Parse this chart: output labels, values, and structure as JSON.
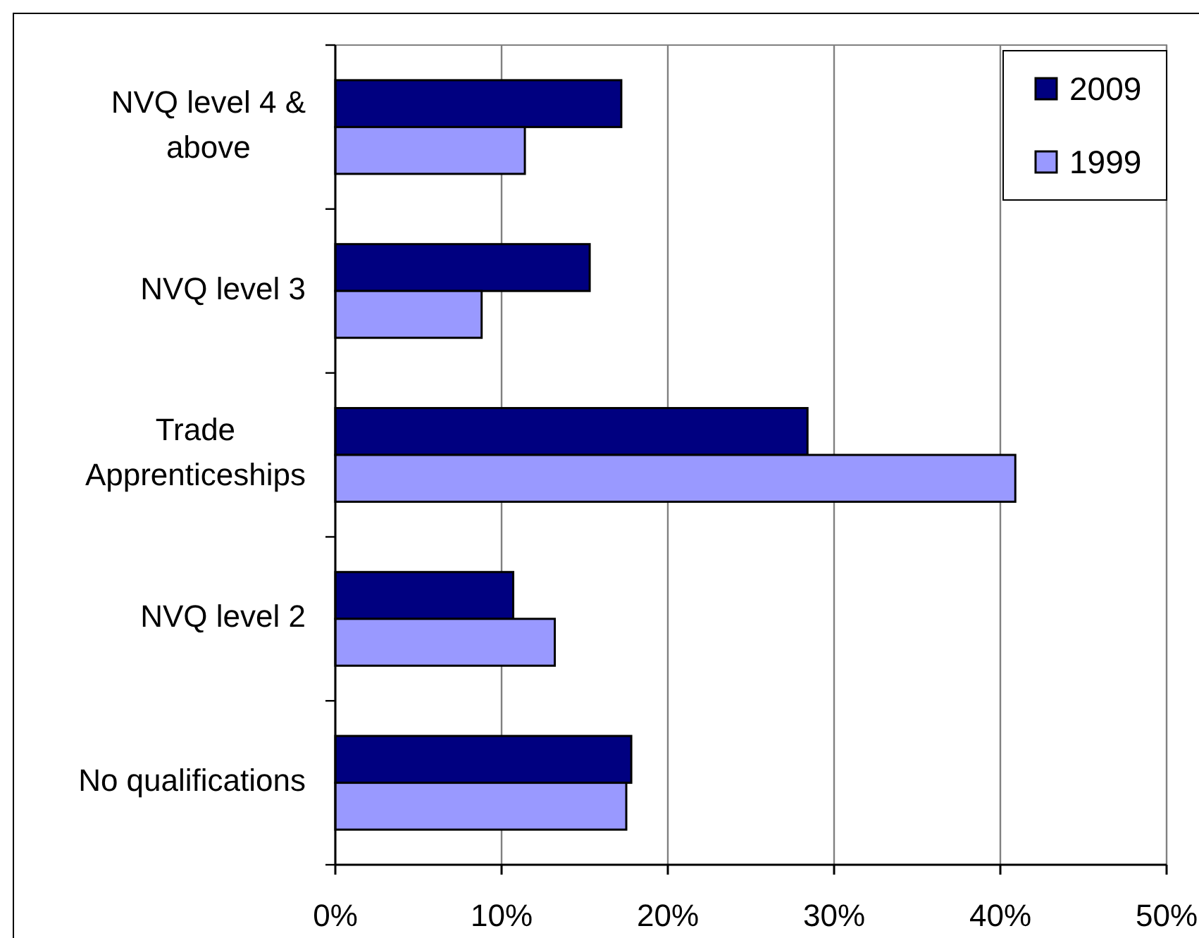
{
  "chart_data": {
    "type": "bar",
    "orientation": "horizontal",
    "categories": [
      "NVQ level 4 & above",
      "NVQ level 3",
      "Trade Apprenticeships",
      "NVQ level 2",
      "No qualifications"
    ],
    "series": [
      {
        "name": "2009",
        "color": "#000080",
        "values": [
          17.2,
          15.3,
          28.4,
          10.7,
          17.8
        ]
      },
      {
        "name": "1999",
        "color": "#9999ff",
        "values": [
          11.4,
          8.8,
          40.9,
          13.2,
          17.5
        ]
      }
    ],
    "xlim": [
      0,
      50
    ],
    "xticks": [
      {
        "value": 0,
        "label": "0%"
      },
      {
        "value": 10,
        "label": "10%"
      },
      {
        "value": 20,
        "label": "20%"
      },
      {
        "value": 30,
        "label": "30%"
      },
      {
        "value": 40,
        "label": "40%"
      },
      {
        "value": 50,
        "label": "50%"
      }
    ],
    "grid": "x",
    "legend": "top right"
  }
}
